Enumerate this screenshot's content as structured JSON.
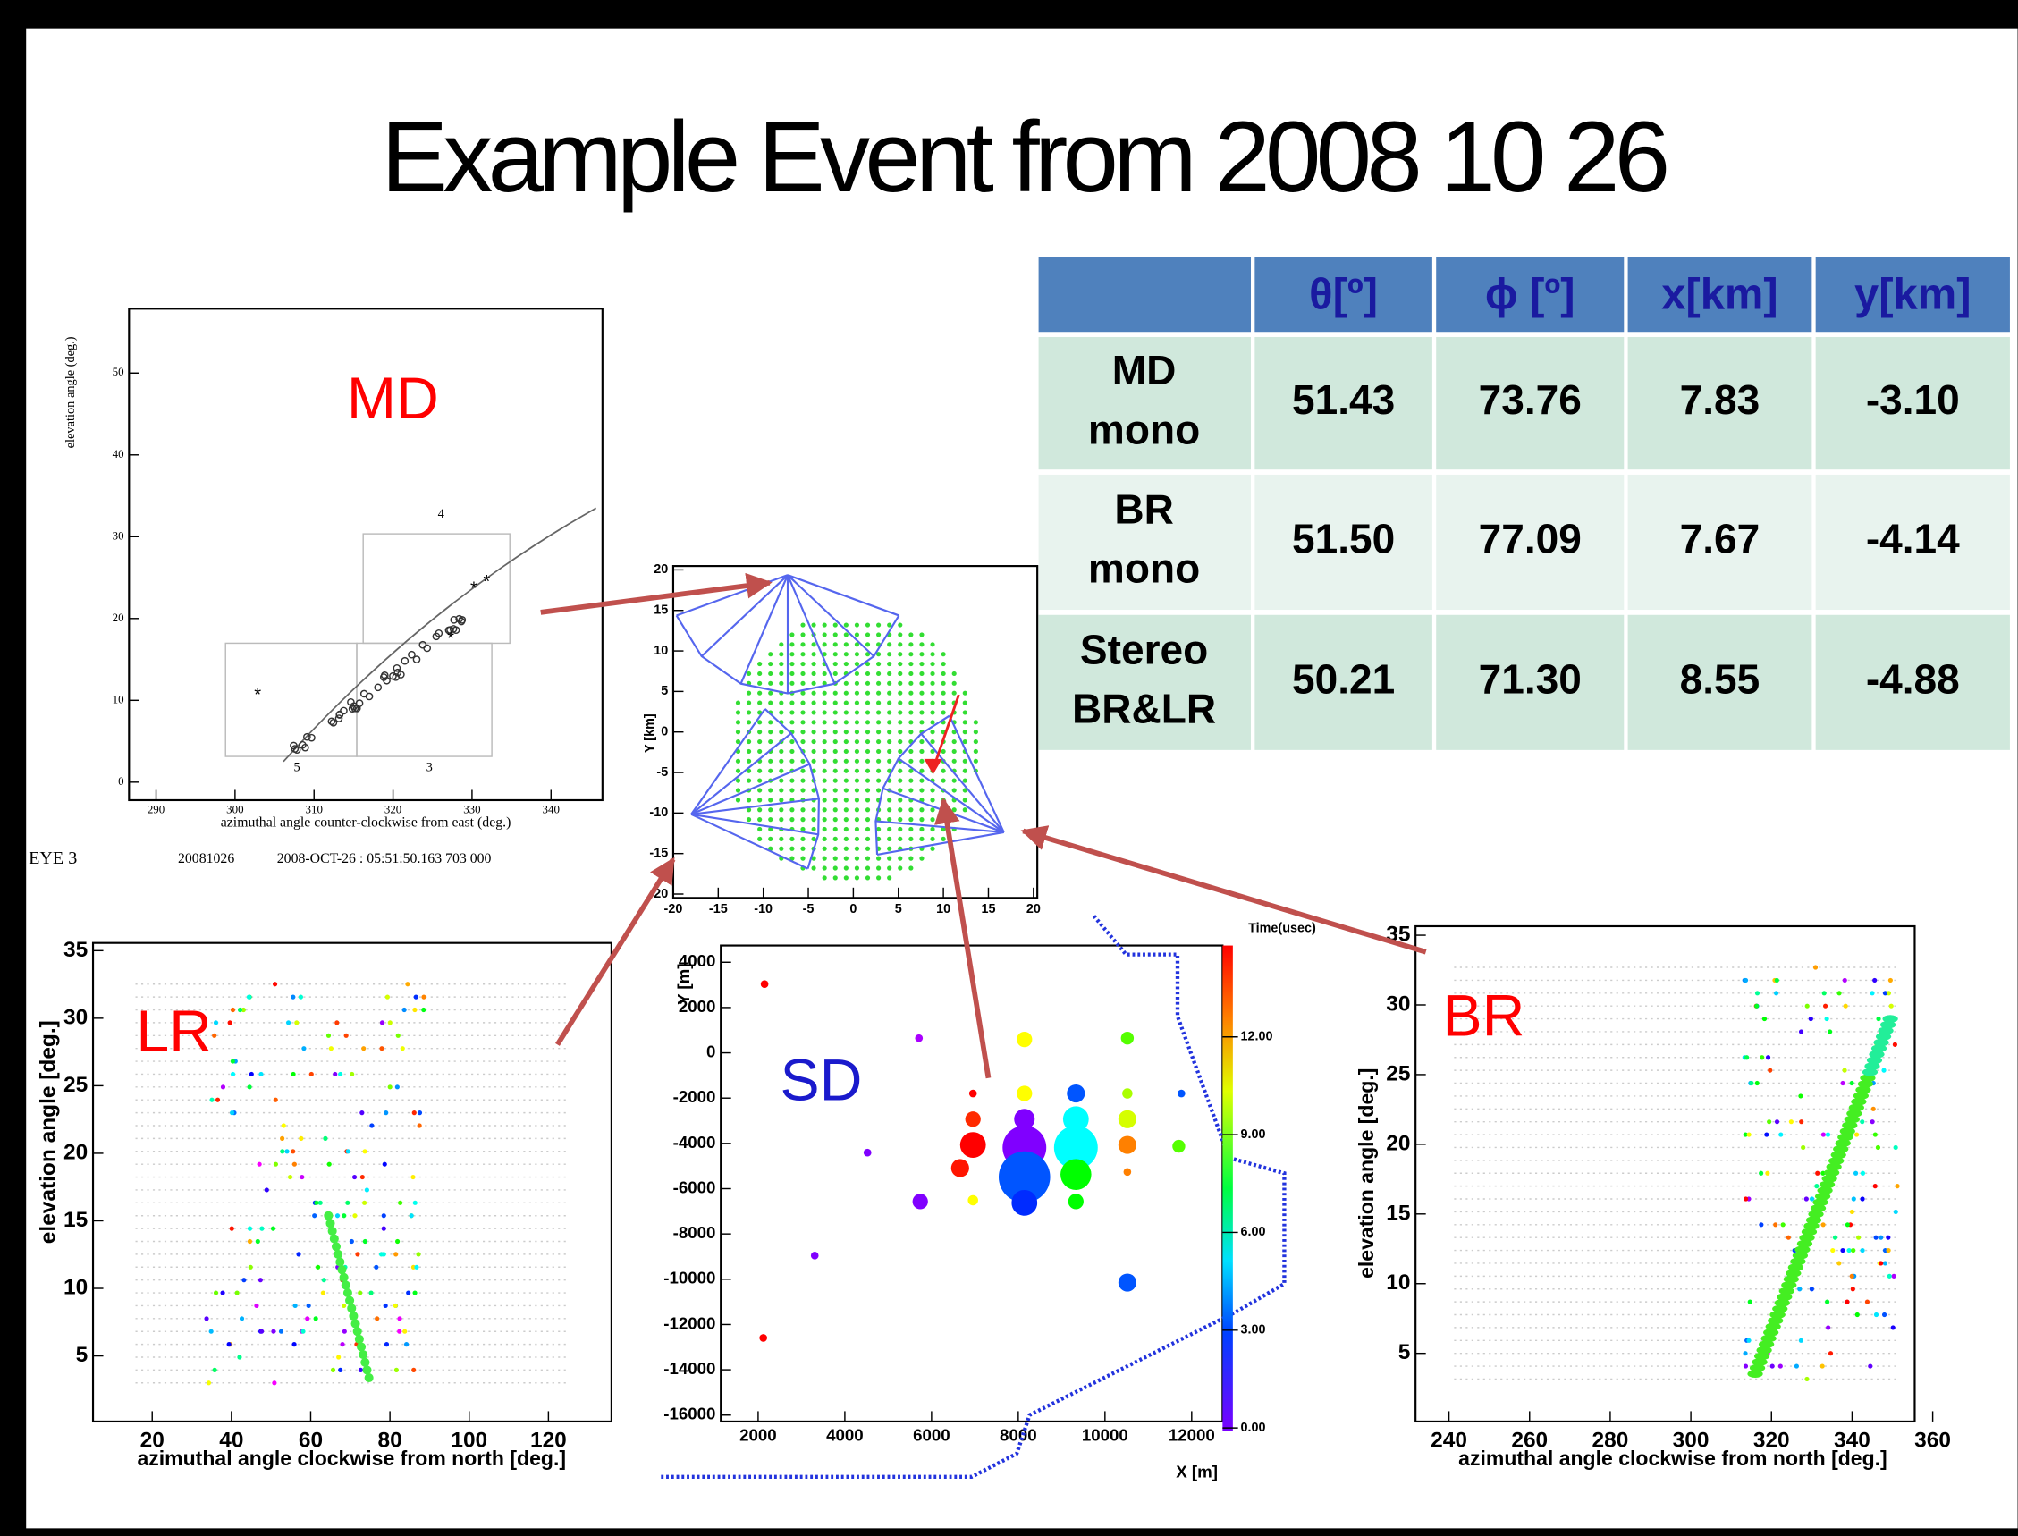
{
  "title": "Example Event  from 2008 10 26",
  "table": {
    "headers": [
      "θ[º]",
      "ϕ [º]",
      "x[km]",
      "y[km]"
    ],
    "rows": [
      {
        "label": [
          "MD",
          "mono"
        ],
        "cells": [
          "51.43",
          "73.76",
          "7.83",
          "-3.10"
        ]
      },
      {
        "label": [
          "BR",
          "mono"
        ],
        "cells": [
          "51.50",
          "77.09",
          "7.67",
          "-4.14"
        ]
      },
      {
        "label": [
          "Stereo",
          "BR&LR"
        ],
        "cells": [
          "50.21",
          "71.30",
          "8.55",
          "-4.88"
        ]
      }
    ]
  },
  "panels": {
    "md": {
      "label": "MD",
      "ylabel": "elevation angle (deg.)",
      "xlabel": "azimuthal angle counter-clockwise from east (deg.)",
      "xticks": [
        290,
        300,
        310,
        320,
        330,
        340
      ],
      "yticks": [
        0,
        10,
        20,
        30,
        40,
        50
      ],
      "annotations": [
        "4",
        "5",
        "3"
      ],
      "footer": [
        "EYE 3",
        "20081026",
        "2008-OCT-26 : 05:51:50.163 703 000"
      ]
    },
    "map": {
      "ylabel": "Y [km]",
      "xticks": [
        -20,
        -15,
        -10,
        -5,
        0,
        5,
        10,
        15,
        20
      ],
      "yticks": [
        -20,
        -15,
        -10,
        -5,
        0,
        5,
        10,
        15,
        20
      ]
    },
    "lr": {
      "label": "LR",
      "ylabel": "elevation angle [deg.]",
      "xlabel": "azimuthal angle clockwise from north [deg.]",
      "xticks": [
        20,
        40,
        60,
        80,
        100,
        120
      ],
      "yticks": [
        5,
        10,
        15,
        20,
        25,
        30,
        35
      ]
    },
    "sd": {
      "label": "SD",
      "ylabel": "Y [m]",
      "xlabel": "X [m]",
      "xticks": [
        2000,
        4000,
        6000,
        8000,
        10000,
        12000
      ],
      "yticks": [
        4000,
        2000,
        0,
        -2000,
        -4000,
        -6000,
        -8000,
        -10000,
        -12000,
        -14000,
        -16000
      ],
      "colorbar_title": "Time(usec)",
      "colorbar_ticks": [
        {
          "value": 0,
          "label": "0.00"
        },
        {
          "value": 3,
          "label": "3.00"
        },
        {
          "value": 6,
          "label": "6.00"
        },
        {
          "value": 9,
          "label": "9.00"
        },
        {
          "value": 12,
          "label": "12.00"
        }
      ]
    },
    "br": {
      "label": "BR",
      "ylabel": "elevation angle [deg.]",
      "xlabel": "azimuthal angle clockwise from north [deg.]",
      "xticks": [
        240,
        260,
        280,
        300,
        320,
        340,
        360
      ],
      "yticks": [
        5,
        10,
        15,
        20,
        25,
        30,
        35
      ]
    }
  }
}
